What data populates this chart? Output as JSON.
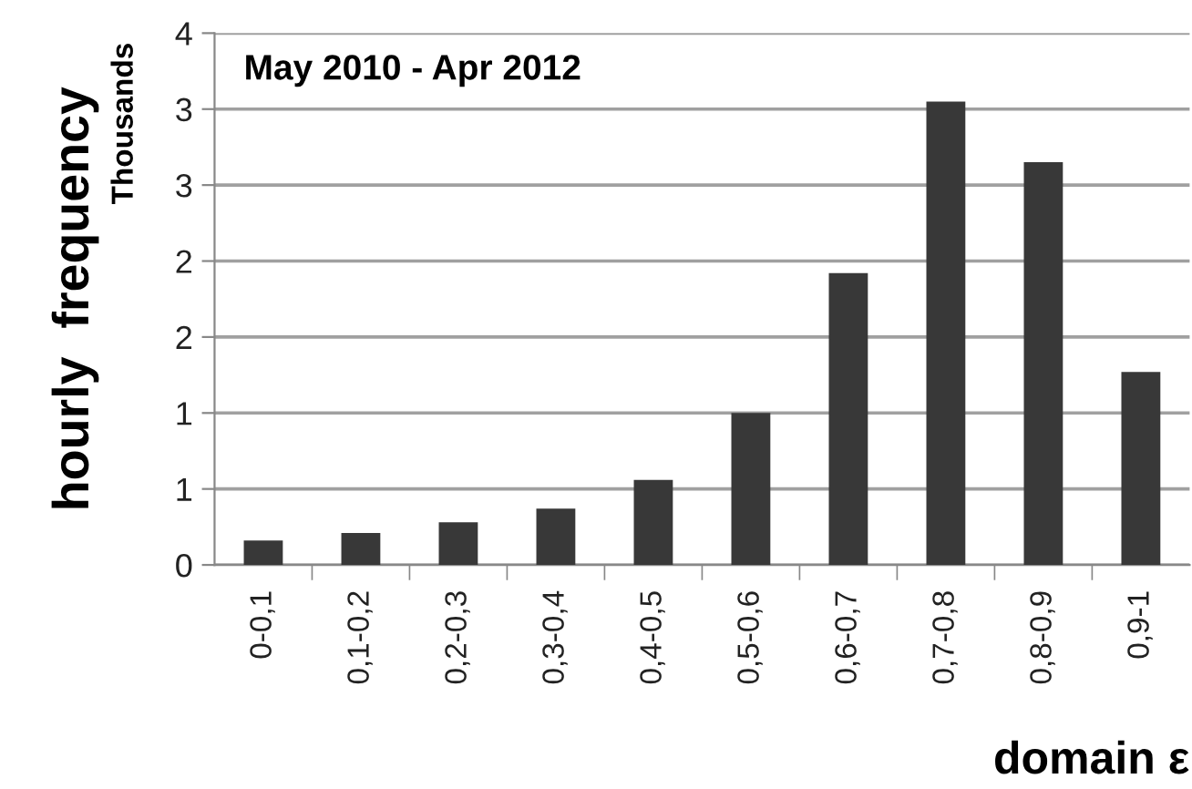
{
  "chart_data": {
    "type": "bar",
    "categories": [
      "0-0,1",
      "0,1-0,2",
      "0,2-0,3",
      "0,3-0,4",
      "0,4-0,5",
      "0,5-0,6",
      "0,6-0,7",
      "0,7-0,8",
      "0,8-0,9",
      "0,9-1"
    ],
    "values": [
      0.16,
      0.21,
      0.28,
      0.37,
      0.56,
      1.0,
      1.92,
      3.05,
      2.65,
      1.27
    ],
    "color": "#383838",
    "ylabel": "hourly  frequency",
    "xlabel": "domain ε",
    "annotations": [
      "May 2010 - Apr 2012",
      "Thousands"
    ],
    "ylim": [
      0,
      3.5
    ],
    "yticks": [
      0,
      {
        "value": 0.5,
        "label": "1"
      },
      1,
      {
        "value": 1.5,
        "label": "2"
      },
      2,
      {
        "value": 2.5,
        "label": "3"
      },
      3,
      {
        "value": 3.5,
        "label": "4"
      }
    ],
    "grid": "y",
    "legend": false
  }
}
